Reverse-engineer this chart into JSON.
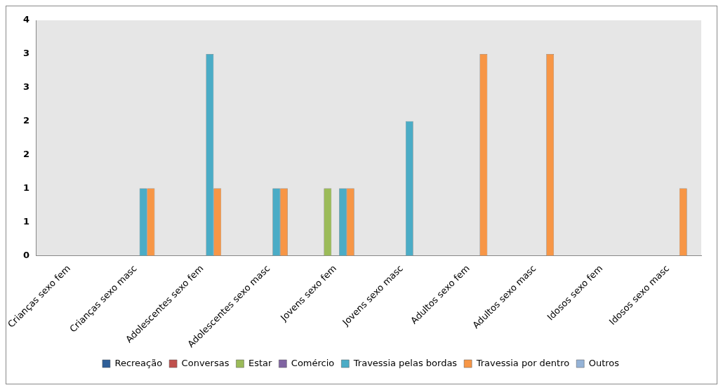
{
  "chart_data": {
    "type": "bar",
    "categories": [
      "Crianças sexo fem",
      "Crianças sexo masc",
      "Adolescentes sexo fem",
      "Adolescentes sexo masc",
      "Jovens sexo fem",
      "Jovens sexo masc",
      "Adultos sexo fem",
      "Adultos sexo masc",
      "Idosos sexo fem",
      "Idosos sexo masc"
    ],
    "series": [
      {
        "name": "Recreação",
        "color": "#2f5f98",
        "values": [
          0,
          0,
          0,
          0,
          0,
          0,
          0,
          0,
          0,
          0
        ]
      },
      {
        "name": "Conversas",
        "color": "#c0504d",
        "values": [
          0,
          0,
          0,
          0,
          0,
          0,
          0,
          0,
          0,
          0
        ]
      },
      {
        "name": "Estar",
        "color": "#9bbb59",
        "values": [
          0,
          0,
          0,
          0,
          1,
          0,
          0,
          0,
          0,
          0
        ]
      },
      {
        "name": "Comércio",
        "color": "#8064a2",
        "values": [
          0,
          0,
          0,
          0,
          0,
          0,
          0,
          0,
          0,
          0
        ]
      },
      {
        "name": "Travessia pelas bordas",
        "color": "#4bacc6",
        "values": [
          0,
          1,
          3,
          1,
          1,
          2,
          0,
          0,
          0,
          0
        ]
      },
      {
        "name": "Travessia por dentro",
        "color": "#f79646",
        "values": [
          0,
          1,
          1,
          1,
          1,
          0,
          3,
          3,
          0,
          1
        ]
      },
      {
        "name": "Outros",
        "color": "#95b3d7",
        "values": [
          0,
          0,
          0,
          0,
          0,
          0,
          0,
          0,
          0,
          0
        ]
      }
    ],
    "ylim": [
      0,
      3.5
    ],
    "yticks": [
      0,
      {
        "value": 0.5,
        "label": "1"
      },
      1,
      {
        "value": 1.5,
        "label": "2"
      },
      2,
      {
        "value": 2.5,
        "label": "3"
      },
      3,
      {
        "value": 3.5,
        "label": "4"
      }
    ],
    "grid": false,
    "legend": "bottom"
  }
}
